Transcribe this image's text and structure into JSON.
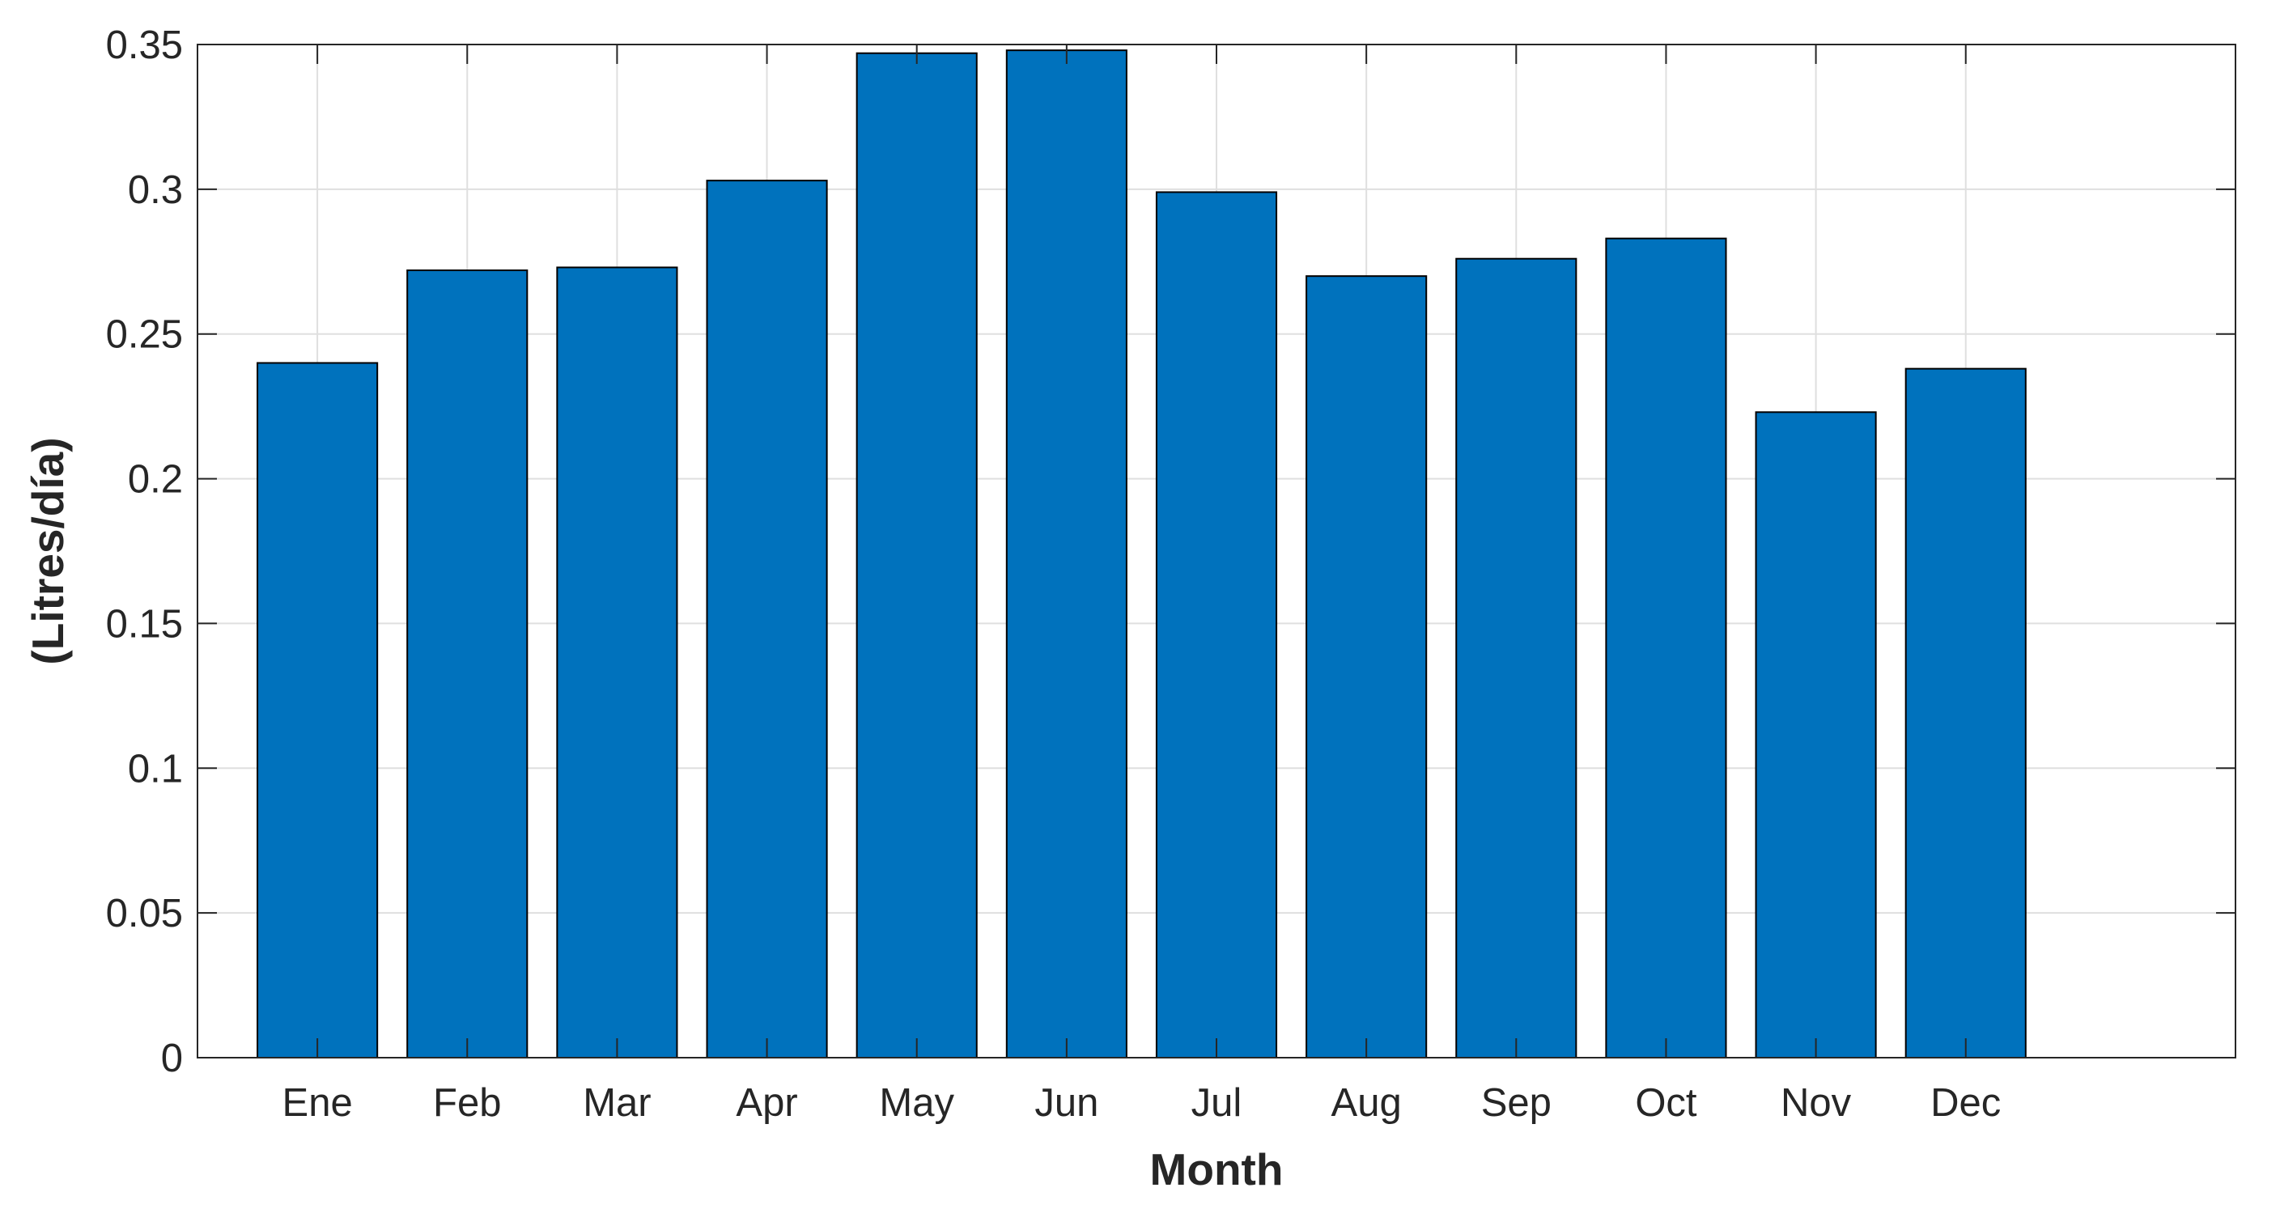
{
  "chart_data": {
    "type": "bar",
    "title": "",
    "xlabel": "Month",
    "ylabel": "(Litres/día)",
    "categories": [
      "Ene",
      "Feb",
      "Mar",
      "Apr",
      "May",
      "Jun",
      "Jul",
      "Aug",
      "Sep",
      "Oct",
      "Nov",
      "Dec"
    ],
    "values": [
      0.24,
      0.272,
      0.273,
      0.303,
      0.347,
      0.348,
      0.299,
      0.27,
      0.276,
      0.283,
      0.223,
      0.238
    ],
    "ylim": [
      0,
      0.35
    ],
    "yticks": [
      0,
      0.05,
      0.1,
      0.15,
      0.2,
      0.25,
      0.3,
      0.35
    ],
    "ytick_labels": [
      "0",
      "0.05",
      "0.1",
      "0.15",
      "0.2",
      "0.25",
      "0.3",
      "0.35"
    ],
    "grid": true,
    "bar_color": "#0072BD",
    "bar_edge_color": "#000000"
  }
}
